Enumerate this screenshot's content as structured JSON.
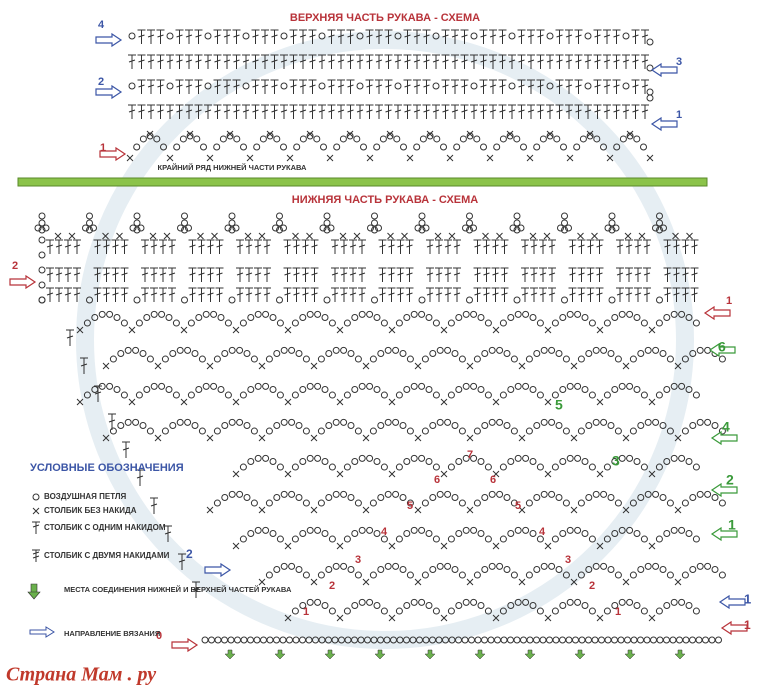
{
  "top_scheme": {
    "title": "ВЕРХНЯЯ ЧАСТЬ РУКАВА - СХЕМА",
    "edge_row_label": "КРАЙНИЙ РЯД НИЖНЕЙ ЧАСТИ РУКАВА",
    "row_labels": [
      "4",
      "2",
      "3",
      "1",
      "1"
    ]
  },
  "bottom_scheme": {
    "title": "НИЖНЯЯ ЧАСТЬ РУКАВА - СХЕМА",
    "left_row_labels": [
      "2",
      "2",
      "0"
    ],
    "right_row_labels": [
      "1",
      "6",
      "4",
      "2",
      "1",
      "1",
      "1"
    ],
    "side_numbers": [
      "5",
      "3"
    ],
    "fan_numbers": [
      "7",
      "6",
      "6",
      "5",
      "5",
      "4",
      "4",
      "3",
      "3",
      "2",
      "2",
      "1",
      "1"
    ]
  },
  "legend": {
    "title": "УСЛОВНЫЕ ОБОЗНАЧЕНИЯ",
    "items": [
      "ВОЗДУШНАЯ ПЕТЛЯ",
      "СТОЛБИК БЕЗ НАКИДА",
      "СТОЛБИК С ОДНИМ НАКИДОМ",
      "СТОЛБИК С ДВУМЯ НАКИДАМИ",
      "МЕСТА СОЕДИНЕНИЯ НИЖНЕЙ И ВЕРХНЕЙ ЧАСТЕЙ РУКАВА",
      "НАПРАВЛЕНИЕ ВЯЗАНИЯ"
    ]
  },
  "watermark": "Страна Мам . ру"
}
